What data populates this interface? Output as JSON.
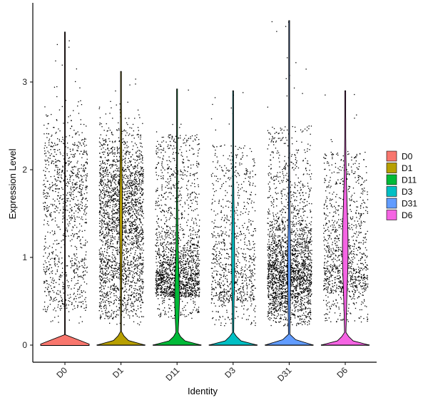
{
  "chart_data": {
    "type": "violin",
    "title": "",
    "xlabel": "Identity",
    "ylabel": "Expression Level",
    "categories": [
      "D0",
      "D1",
      "D11",
      "D3",
      "D31",
      "D6"
    ],
    "ylim": [
      -0.2,
      3.85
    ],
    "yticks": [
      0,
      1,
      2,
      3
    ],
    "legend_position": "right",
    "grid": false,
    "series": [
      {
        "name": "D0",
        "color": "#F8766D",
        "max": 3.57,
        "zero_fraction": 0.97,
        "nonzero_points": 1050,
        "nonzero_mean": 1.55
      },
      {
        "name": "D1",
        "color": "#B79F00",
        "max": 3.12,
        "zero_fraction": 0.82,
        "nonzero_points": 2400,
        "nonzero_mean": 1.5
      },
      {
        "name": "D11",
        "color": "#00BA38",
        "max": 2.92,
        "zero_fraction": 0.8,
        "nonzero_points": 1800,
        "nonzero_mean": 0.75
      },
      {
        "name": "D3",
        "color": "#00BFC4",
        "max": 2.9,
        "zero_fraction": 0.85,
        "nonzero_points": 900,
        "nonzero_mean": 1.0
      },
      {
        "name": "D31",
        "color": "#619CFF",
        "max": 3.7,
        "zero_fraction": 0.8,
        "nonzero_points": 2400,
        "nonzero_mean": 0.85
      },
      {
        "name": "D6",
        "color": "#F564E3",
        "max": 2.9,
        "zero_fraction": 0.7,
        "nonzero_points": 1100,
        "nonzero_mean": 1.0
      }
    ]
  }
}
